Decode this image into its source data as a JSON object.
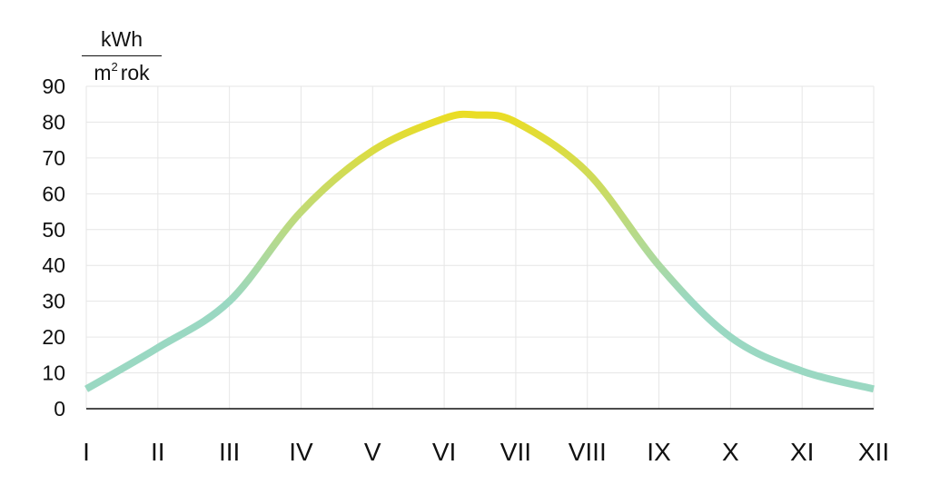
{
  "chart_data": {
    "type": "line",
    "title": "",
    "xlabel": "",
    "ylabel": {
      "numerator": "kWh",
      "denominator_base": "m",
      "denominator_exp": "2",
      "denominator_rest": "rok"
    },
    "ylim": [
      0,
      90
    ],
    "yticks": [
      "0",
      "10",
      "20",
      "30",
      "40",
      "50",
      "60",
      "70",
      "80",
      "90"
    ],
    "categories": [
      "I",
      "II",
      "III",
      "IV",
      "V",
      "VI",
      "VII",
      "VIII",
      "IX",
      "X",
      "XI",
      "XII"
    ],
    "grid": true,
    "series": [
      {
        "x": [
          1,
          2,
          3,
          4,
          5,
          6,
          6.45,
          7,
          8,
          9,
          10,
          11,
          12
        ],
        "values": [
          5.5,
          17,
          30,
          55,
          72,
          81,
          82,
          80,
          66,
          40,
          20,
          10.5,
          5.5
        ]
      }
    ],
    "colors": {
      "line_low": "#9ad8c2",
      "line_high": "#ebdd23",
      "grid": "#e6e6e6",
      "axis": "#111111"
    }
  }
}
